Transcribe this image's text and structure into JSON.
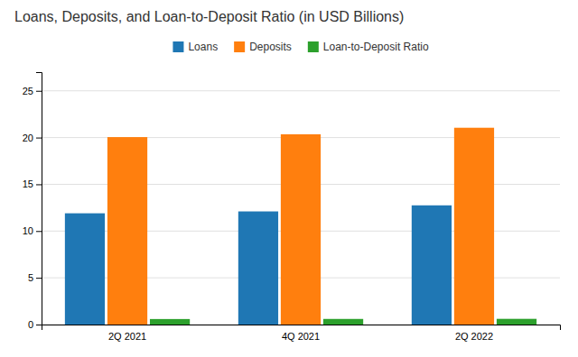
{
  "chart_data": {
    "type": "bar",
    "title": "Loans, Deposits, and Loan-to-Deposit Ratio (in USD Billions)",
    "categories": [
      "2Q 2021",
      "4Q 2021",
      "2Q 2022"
    ],
    "series": [
      {
        "name": "Loans",
        "values": [
          11.9,
          12.1,
          12.75
        ]
      },
      {
        "name": "Deposits",
        "values": [
          20.05,
          20.35,
          21.05
        ]
      },
      {
        "name": "Loan-to-Deposit Ratio",
        "values": [
          0.59,
          0.6,
          0.61
        ]
      }
    ],
    "ylim": [
      0,
      27
    ],
    "yticks": [
      0,
      5,
      10,
      15,
      20,
      25
    ],
    "grid": true,
    "legend": "top"
  }
}
